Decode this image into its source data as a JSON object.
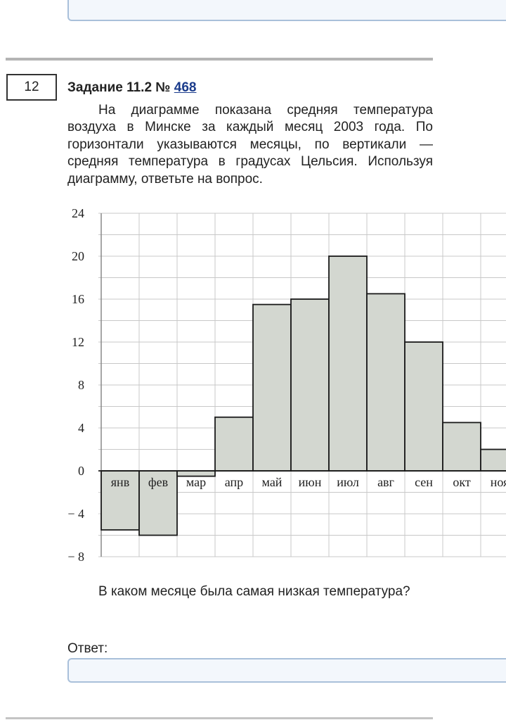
{
  "task": {
    "number": "12",
    "title_prefix": "Задание 11.2 №",
    "title_link": "468",
    "text": "На диаграмме показана средняя температура воздуха в Минске за каждый месяц 2003 года. По горизонтали указываются месяцы, по вертикали — средняя температура в градусах Цельсия. Используя диаграмму, ответьте на вопрос.",
    "question": "В каком месяце была самая низкая температура?",
    "answer_label": "Ответ:"
  },
  "chart_data": {
    "type": "bar",
    "categories": [
      "янв",
      "фев",
      "мар",
      "апр",
      "май",
      "июн",
      "июл",
      "авг",
      "сен",
      "окт",
      "ноя"
    ],
    "values": [
      -5.5,
      -6,
      -0.5,
      5,
      15.5,
      16,
      20,
      16.5,
      12,
      4.5,
      2
    ],
    "yticks": [
      "24",
      "20",
      "16",
      "12",
      "8",
      "4",
      "0",
      "− 4",
      "− 8"
    ],
    "ylim": [
      -8,
      24
    ],
    "grid": true,
    "bar_color": "#d3d7d0"
  }
}
